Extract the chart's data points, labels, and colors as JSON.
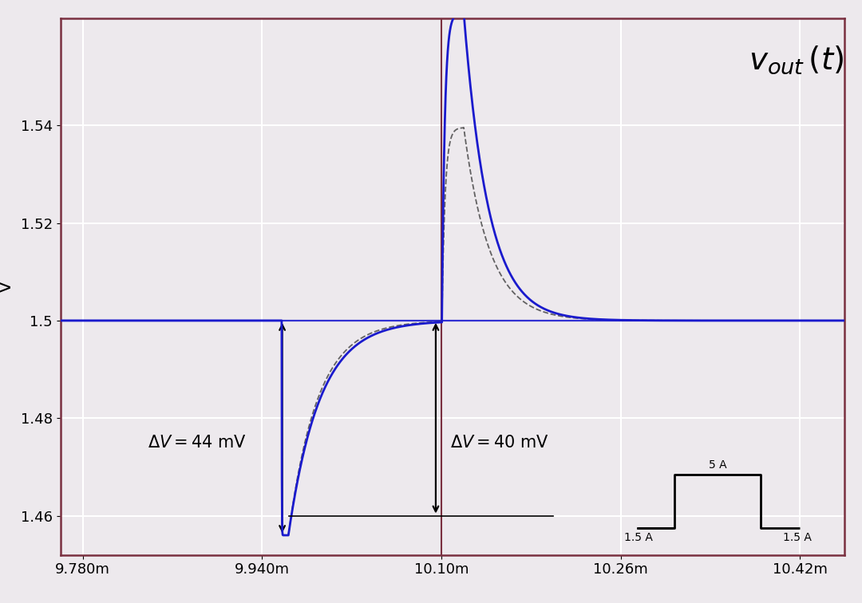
{
  "ylabel": "V",
  "xlim": [
    0.00976,
    0.01046
  ],
  "ylim": [
    1.452,
    1.562
  ],
  "yticks": [
    1.46,
    1.48,
    1.5,
    1.52,
    1.54
  ],
  "xtick_labels": [
    "9.780m",
    "9.940m",
    "10.10m",
    "10.26m",
    "10.42m"
  ],
  "xtick_vals": [
    0.00978,
    0.00994,
    0.0101,
    0.01026,
    0.01042
  ],
  "vline_x": 0.0101,
  "hline_y": 1.5,
  "ref_voltage": 1.5,
  "bg_color": "#ede9ed",
  "plot_bg": "#ede9ed",
  "waveform_color": "#1a1acd",
  "ref_line_color": "#1a1acd",
  "vline_color": "#7a3040",
  "dashed_color": "#333333",
  "grid_color": "#ffffff",
  "border_color": "#7a3040",
  "annotation_dv1": "$\\Delta V = 44\\ \\mathrm{mV}$",
  "annotation_dv2": "$\\Delta V = 40\\ \\mathrm{mV}$",
  "peak_voltage": 1.563,
  "drop_voltage": 1.456
}
